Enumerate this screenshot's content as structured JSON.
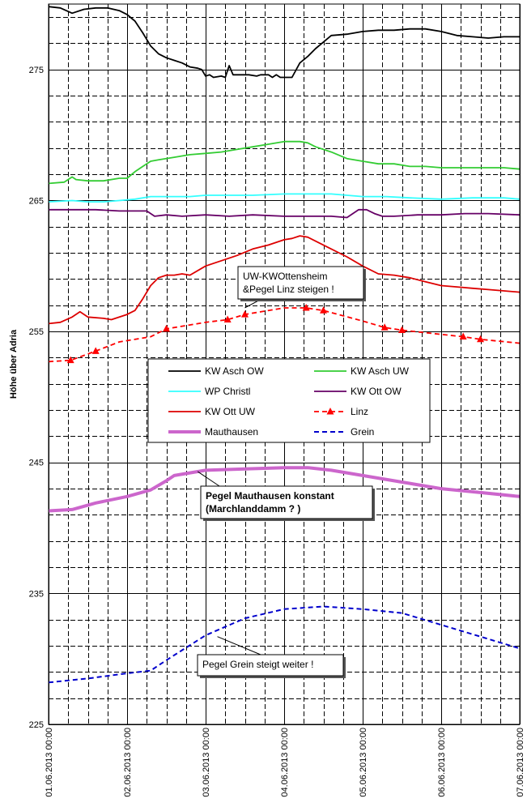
{
  "chart_data": {
    "type": "line",
    "title": "",
    "xlabel": "",
    "ylabel": "Höhe über Adria",
    "xlim": [
      "01.06.2013 00:00",
      "07.06.2013 00:00"
    ],
    "ylim": [
      225,
      280
    ],
    "yticks": [
      225,
      235,
      245,
      255,
      265,
      275
    ],
    "y_gridline_step": 2,
    "x_tick_labels": [
      "01.06.2013 00:00",
      "02.06.2013 00:00",
      "03.06.2013 00:00",
      "04.06.2013 00:00",
      "05.06.2013 00:00",
      "06.06.2013 00:00",
      "07.06.2013 00:00"
    ],
    "x_gridline_step_hours": 6,
    "grid": true,
    "legend_position": "center-left",
    "x_unit": "days since 01.06.2013 00:00",
    "series": [
      {
        "name": "KW Asch OW",
        "color": "#000000",
        "style": "solid",
        "x": [
          0,
          0.15,
          0.3,
          0.45,
          0.6,
          0.75,
          0.9,
          1.0,
          1.1,
          1.2,
          1.3,
          1.4,
          1.5,
          1.6,
          1.7,
          1.8,
          1.9,
          1.95,
          2.0,
          2.05,
          2.1,
          2.2,
          2.25,
          2.3,
          2.35,
          2.45,
          2.55,
          2.65,
          2.7,
          2.75,
          2.8,
          2.85,
          2.9,
          2.95,
          3.0,
          3.05,
          3.1,
          3.2,
          3.3,
          3.4,
          3.5,
          3.6,
          3.8,
          4.0,
          4.2,
          4.4,
          4.6,
          4.8,
          5.0,
          5.2,
          5.4,
          5.6,
          5.8,
          6.0
        ],
        "y": [
          279.8,
          279.7,
          279.3,
          279.6,
          279.7,
          279.7,
          279.5,
          279.2,
          278.7,
          277.8,
          276.8,
          276.2,
          275.9,
          275.7,
          275.5,
          275.2,
          275.1,
          275.0,
          274.5,
          274.6,
          274.4,
          274.5,
          274.4,
          275.3,
          274.6,
          274.6,
          274.6,
          274.5,
          274.6,
          274.6,
          274.6,
          274.4,
          274.6,
          274.4,
          274.4,
          274.4,
          274.4,
          275.5,
          276.0,
          276.6,
          277.1,
          277.6,
          277.7,
          277.9,
          278.0,
          278.0,
          278.1,
          278.1,
          277.9,
          277.6,
          277.5,
          277.4,
          277.5,
          277.5
        ]
      },
      {
        "name": "KW Asch UW",
        "color": "#33cc33",
        "style": "solid",
        "x": [
          0,
          0.2,
          0.3,
          0.35,
          0.5,
          0.7,
          0.9,
          1.0,
          1.1,
          1.2,
          1.3,
          1.4,
          1.6,
          1.8,
          2.0,
          2.2,
          2.4,
          2.6,
          2.8,
          3.0,
          3.1,
          3.2,
          3.3,
          3.4,
          3.6,
          3.8,
          4.0,
          4.2,
          4.4,
          4.6,
          4.8,
          5.0,
          5.2,
          5.4,
          5.6,
          5.8,
          6.0
        ],
        "y": [
          266.3,
          266.4,
          266.8,
          266.6,
          266.5,
          266.5,
          266.7,
          266.7,
          267.2,
          267.6,
          268.0,
          268.1,
          268.3,
          268.5,
          268.6,
          268.7,
          268.9,
          269.1,
          269.3,
          269.5,
          269.5,
          269.5,
          269.4,
          269.1,
          268.7,
          268.2,
          268.0,
          267.8,
          267.8,
          267.6,
          267.6,
          267.5,
          267.5,
          267.5,
          267.5,
          267.5,
          267.4
        ]
      },
      {
        "name": "WP Christl",
        "color": "#33ffff",
        "style": "solid",
        "x": [
          0,
          0.3,
          0.5,
          0.7,
          0.9,
          1.1,
          1.3,
          1.5,
          1.8,
          2.0,
          2.3,
          2.6,
          3.0,
          3.3,
          3.6,
          4.0,
          4.3,
          4.6,
          5.0,
          5.4,
          5.8,
          6.0
        ],
        "y": [
          264.9,
          265.0,
          264.9,
          264.9,
          265.0,
          265.1,
          265.3,
          265.3,
          265.3,
          265.4,
          265.4,
          265.4,
          265.5,
          265.5,
          265.5,
          265.3,
          265.3,
          265.2,
          265.1,
          265.2,
          265.2,
          265.1
        ]
      },
      {
        "name": "KW Ott OW",
        "color": "#660066",
        "style": "solid",
        "x": [
          0,
          0.3,
          0.6,
          0.9,
          1.1,
          1.25,
          1.35,
          1.5,
          1.7,
          2.0,
          2.3,
          2.6,
          3.0,
          3.3,
          3.6,
          3.8,
          3.95,
          4.05,
          4.15,
          4.25,
          4.4,
          4.7,
          5.0,
          5.3,
          5.6,
          6.0
        ],
        "y": [
          264.3,
          264.3,
          264.3,
          264.2,
          264.2,
          264.2,
          263.8,
          263.9,
          263.8,
          263.9,
          263.8,
          263.9,
          263.8,
          263.8,
          263.8,
          263.7,
          264.3,
          264.3,
          264.0,
          263.8,
          263.8,
          263.9,
          263.9,
          264.0,
          264.0,
          263.9
        ]
      },
      {
        "name": "KW Ott UW",
        "color": "#dd0000",
        "style": "solid",
        "x": [
          0,
          0.15,
          0.3,
          0.4,
          0.5,
          0.7,
          0.8,
          1.0,
          1.1,
          1.2,
          1.3,
          1.4,
          1.5,
          1.6,
          1.7,
          1.8,
          2.0,
          2.2,
          2.4,
          2.6,
          2.8,
          3.0,
          3.1,
          3.2,
          3.3,
          3.4,
          3.6,
          3.8,
          4.0,
          4.2,
          4.4,
          4.6,
          4.8,
          5.0,
          5.2,
          5.4,
          5.6,
          5.8,
          6.0
        ],
        "y": [
          255.6,
          255.7,
          256.1,
          256.5,
          256.1,
          256.0,
          255.9,
          256.3,
          256.6,
          257.5,
          258.5,
          259.1,
          259.3,
          259.3,
          259.4,
          259.3,
          260.0,
          260.4,
          260.8,
          261.3,
          261.6,
          262.0,
          262.1,
          262.3,
          262.2,
          261.9,
          261.3,
          260.7,
          260.0,
          259.4,
          259.3,
          259.1,
          258.8,
          258.5,
          258.4,
          258.3,
          258.2,
          258.1,
          258.0
        ]
      },
      {
        "name": "Linz",
        "color": "#ff0000",
        "style": "dashed-triangle",
        "x": [
          0,
          0.28,
          0.6,
          0.9,
          1.3,
          1.5,
          2.0,
          2.28,
          2.5,
          3.0,
          3.28,
          3.5,
          4.0,
          4.28,
          4.5,
          5.28,
          5.5,
          6.0
        ],
        "y": [
          252.7,
          252.8,
          253.5,
          254.2,
          254.6,
          255.2,
          255.7,
          255.9,
          256.3,
          256.8,
          256.8,
          256.6,
          255.8,
          255.3,
          255.1,
          254.6,
          254.4,
          254.1
        ]
      },
      {
        "name": "Mauthausen",
        "color": "#cc66cc",
        "style": "thick",
        "x": [
          0,
          0.3,
          0.6,
          1.0,
          1.3,
          1.5,
          1.6,
          2.0,
          2.5,
          3.0,
          3.3,
          3.6,
          4.0,
          4.5,
          5.0,
          5.5,
          6.0
        ],
        "y": [
          241.3,
          241.4,
          241.9,
          242.4,
          242.9,
          243.6,
          244.0,
          244.4,
          244.5,
          244.6,
          244.6,
          244.4,
          244.0,
          243.5,
          243.0,
          242.7,
          242.4
        ]
      },
      {
        "name": "Grein",
        "color": "#0000cc",
        "style": "dashed",
        "x": [
          0,
          0.5,
          1.0,
          1.3,
          1.5,
          2.0,
          2.5,
          3.0,
          3.5,
          4.0,
          4.5,
          5.0,
          5.5,
          6.0
        ],
        "y": [
          228.2,
          228.5,
          228.9,
          229.1,
          229.9,
          231.8,
          233.1,
          233.8,
          234.0,
          233.8,
          233.5,
          232.6,
          231.7,
          230.8
        ]
      }
    ],
    "annotations": [
      {
        "id": "ann1",
        "lines": [
          "UW-KWOttensheim",
          "&Pegel Linz steigen !"
        ],
        "bold": false,
        "x": 2.5,
        "y": 256.8
      },
      {
        "id": "ann2",
        "lines": [
          "Pegel Mauthausen konstant",
          "(Marchlanddamm ? )"
        ],
        "bold": true,
        "x": 1.9,
        "y": 244.3
      },
      {
        "id": "ann3",
        "lines": [
          "Pegel Grein steigt weiter !"
        ],
        "bold": false,
        "x": 2.15,
        "y": 231.7
      }
    ]
  }
}
